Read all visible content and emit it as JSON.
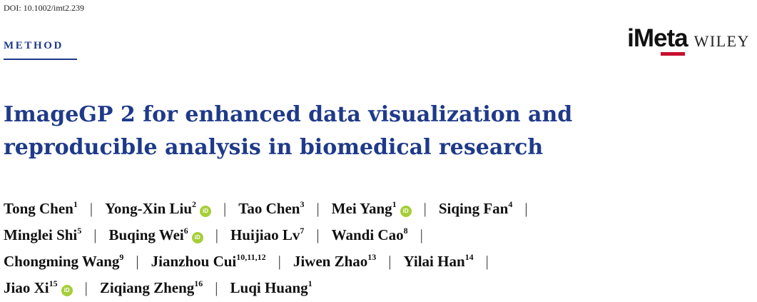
{
  "header": {
    "doi": "DOI: 10.1002/imt2.239",
    "section": "METHOD",
    "journal_logo": "iMeta",
    "publisher_logo": "WILEY",
    "brand_accent_color": "#c8102e"
  },
  "title": {
    "line1": "ImageGP 2 for enhanced data visualization and",
    "line2": "reproducible analysis in biomedical research"
  },
  "colors": {
    "title": "#1f3a8a",
    "orcid": "#a6ce39"
  },
  "authors": [
    {
      "name": "Tong Chen",
      "aff": "1",
      "orcid": false
    },
    {
      "name": "Yong-Xin Liu",
      "aff": "2",
      "orcid": true
    },
    {
      "name": "Tao Chen",
      "aff": "3",
      "orcid": false
    },
    {
      "name": "Mei Yang",
      "aff": "1",
      "orcid": true
    },
    {
      "name": "Siqing Fan",
      "aff": "4",
      "orcid": false
    },
    {
      "name": "Minglei Shi",
      "aff": "5",
      "orcid": false
    },
    {
      "name": "Buqing Wei",
      "aff": "6",
      "orcid": true
    },
    {
      "name": "Huijiao Lv",
      "aff": "7",
      "orcid": false
    },
    {
      "name": "Wandi Cao",
      "aff": "8",
      "orcid": false
    },
    {
      "name": "Chongming Wang",
      "aff": "9",
      "orcid": false
    },
    {
      "name": "Jianzhou Cui",
      "aff": "10,11,12",
      "orcid": false
    },
    {
      "name": "Jiwen Zhao",
      "aff": "13",
      "orcid": false
    },
    {
      "name": "Yilai Han",
      "aff": "14",
      "orcid": false
    },
    {
      "name": "Jiao Xi",
      "aff": "15",
      "orcid": true
    },
    {
      "name": "Ziqiang Zheng",
      "aff": "16",
      "orcid": false
    },
    {
      "name": "Luqi Huang",
      "aff": "1",
      "orcid": false
    }
  ],
  "author_lines": [
    [
      0,
      1,
      2,
      3,
      4
    ],
    [
      5,
      6,
      7,
      8
    ],
    [
      9,
      10,
      11,
      12
    ],
    [
      13,
      14,
      15
    ]
  ],
  "separator": "|",
  "orcid_label": "iD"
}
